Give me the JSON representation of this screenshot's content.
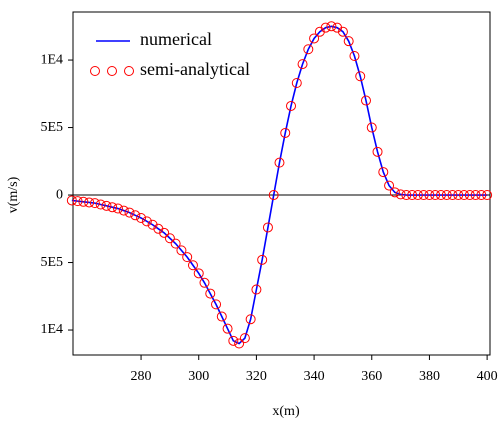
{
  "chart_data": {
    "type": "line",
    "xlabel": "x(m)",
    "ylabel": "v(m/s)",
    "x": [
      256,
      258,
      260,
      262,
      264,
      266,
      268,
      270,
      272,
      274,
      276,
      278,
      280,
      282,
      284,
      286,
      288,
      290,
      292,
      294,
      296,
      298,
      300,
      302,
      304,
      306,
      308,
      310,
      312,
      314,
      316,
      318,
      320,
      322,
      324,
      326,
      328,
      330,
      332,
      334,
      336,
      338,
      340,
      342,
      344,
      346,
      348,
      350,
      352,
      354,
      356,
      358,
      360,
      362,
      364,
      366,
      368,
      370,
      372,
      374,
      376,
      378,
      380,
      382,
      384,
      386,
      388,
      390,
      392,
      394,
      396,
      398,
      400
    ],
    "series": [
      {
        "name": "numerical",
        "color": "#0000ff",
        "style": "line",
        "values": [
          -4e-06,
          -4.5e-06,
          -5e-06,
          -5.5e-06,
          -6e-06,
          -7e-06,
          -8e-06,
          -9e-06,
          -1e-05,
          -1.15e-05,
          -1.3e-05,
          -1.5e-05,
          -1.7e-05,
          -1.95e-05,
          -2.2e-05,
          -2.5e-05,
          -2.8e-05,
          -3.2e-05,
          -3.6e-05,
          -4.1e-05,
          -4.6e-05,
          -5.2e-05,
          -5.8e-05,
          -6.5e-05,
          -7.3e-05,
          -8.1e-05,
          -9e-05,
          -9.9e-05,
          -0.000108,
          -0.00011,
          -0.000106,
          -9.2e-05,
          -7e-05,
          -4.8e-05,
          -2.4e-05,
          0,
          2.4e-05,
          4.6e-05,
          6.6e-05,
          8.3e-05,
          9.7e-05,
          0.000108,
          0.000116,
          0.000121,
          0.000124,
          0.000125,
          0.000124,
          0.000121,
          0.000114,
          0.000103,
          8.8e-05,
          7e-05,
          5e-05,
          3.2e-05,
          1.7e-05,
          7e-06,
          2e-06,
          5e-07,
          0,
          0,
          0,
          0,
          0,
          0,
          0,
          0,
          0,
          0,
          0,
          0,
          0,
          0,
          0
        ]
      },
      {
        "name": "semi-analytical",
        "color": "#ff0000",
        "style": "markers",
        "values": [
          -4e-06,
          -4.5e-06,
          -5e-06,
          -5.5e-06,
          -6e-06,
          -7e-06,
          -8e-06,
          -9e-06,
          -1e-05,
          -1.15e-05,
          -1.3e-05,
          -1.5e-05,
          -1.7e-05,
          -1.95e-05,
          -2.2e-05,
          -2.5e-05,
          -2.8e-05,
          -3.2e-05,
          -3.6e-05,
          -4.1e-05,
          -4.6e-05,
          -5.2e-05,
          -5.8e-05,
          -6.5e-05,
          -7.3e-05,
          -8.1e-05,
          -9e-05,
          -9.9e-05,
          -0.000108,
          -0.00011,
          -0.000106,
          -9.2e-05,
          -7e-05,
          -4.8e-05,
          -2.4e-05,
          0,
          2.4e-05,
          4.6e-05,
          6.6e-05,
          8.3e-05,
          9.7e-05,
          0.000108,
          0.000116,
          0.000121,
          0.000124,
          0.000125,
          0.000124,
          0.000121,
          0.000114,
          0.000103,
          8.8e-05,
          7e-05,
          5e-05,
          3.2e-05,
          1.7e-05,
          7e-06,
          2e-06,
          5e-07,
          0,
          0,
          0,
          0,
          0,
          0,
          0,
          0,
          0,
          0,
          0,
          0,
          0,
          0,
          0
        ]
      }
    ],
    "xlim": [
      256.4,
      401
    ],
    "xticks": [
      280,
      300,
      320,
      340,
      360,
      380,
      400
    ],
    "ylim": [
      -0.0001185,
      0.0001356
    ],
    "yticks": [
      {
        "value": -0.0001,
        "label": "1E4"
      },
      {
        "value": -5e-05,
        "label": "5E5"
      },
      0,
      {
        "value": 5e-05,
        "label": "5E5"
      },
      {
        "value": 0.0001,
        "label": "1E4"
      }
    ],
    "zero_line": true,
    "legend": "upper left"
  }
}
